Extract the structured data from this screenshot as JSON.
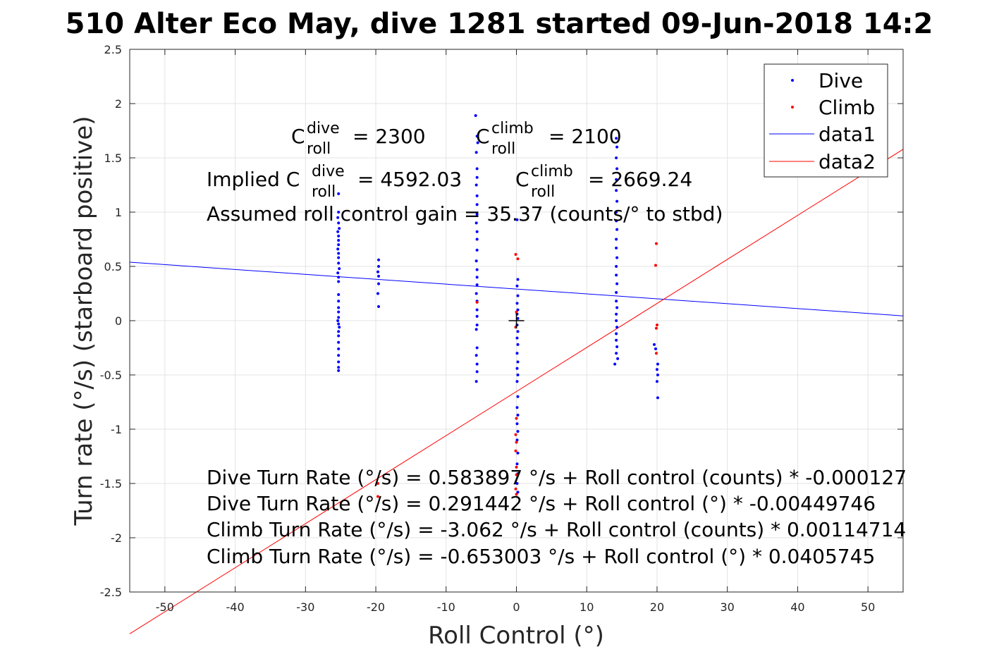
{
  "title": "510 Alter Eco May, dive 1281 started 09-Jun-2018 14:2",
  "chart_data": {
    "type": "scatter",
    "xlabel": "Roll Control (°)",
    "ylabel": "Turn rate (°/s) (starboard positive)",
    "xlim": [
      -55,
      55
    ],
    "ylim": [
      -2.5,
      2.5
    ],
    "x_ticks": [
      "-50",
      "-40",
      "-30",
      "-20",
      "-10",
      "0",
      "10",
      "20",
      "30",
      "40",
      "50"
    ],
    "y_ticks": [
      "2.5",
      "2",
      "1.5",
      "1",
      "0.5",
      "0",
      "-0.5",
      "-1",
      "-1.5",
      "-2",
      "-2.5"
    ],
    "grid": true,
    "legend_position": "top-right",
    "legend": [
      "Dive",
      "Climb",
      "data1",
      "data2"
    ],
    "colors": {
      "dive": "#0000ff",
      "climb": "#ff0000",
      "data1": "#0000ff",
      "data2": "#ff0000",
      "grid": "#e3e3e3"
    },
    "series": [
      {
        "name": "Dive",
        "kind": "points",
        "points": [
          [
            -25.3,
            1.17
          ],
          [
            -25.3,
            1.0
          ],
          [
            -25.4,
            0.95
          ],
          [
            -25.3,
            0.9
          ],
          [
            -25.2,
            0.85
          ],
          [
            -25.4,
            0.82
          ],
          [
            -25.3,
            0.78
          ],
          [
            -25.3,
            0.74
          ],
          [
            -25.3,
            0.7
          ],
          [
            -25.4,
            0.66
          ],
          [
            -25.3,
            0.62
          ],
          [
            -25.3,
            0.58
          ],
          [
            -25.3,
            0.53
          ],
          [
            -25.2,
            0.48
          ],
          [
            -25.4,
            0.44
          ],
          [
            -25.3,
            0.4
          ],
          [
            -25.3,
            0.36
          ],
          [
            -25.3,
            0.24
          ],
          [
            -25.3,
            0.18
          ],
          [
            -25.3,
            0.12
          ],
          [
            -25.3,
            0.08
          ],
          [
            -25.3,
            0.03
          ],
          [
            -25.4,
            0.0
          ],
          [
            -25.3,
            -0.03
          ],
          [
            -25.2,
            -0.06
          ],
          [
            -25.3,
            -0.1
          ],
          [
            -25.3,
            -0.14
          ],
          [
            -25.3,
            -0.2
          ],
          [
            -25.3,
            -0.26
          ],
          [
            -25.3,
            -0.32
          ],
          [
            -25.3,
            -0.38
          ],
          [
            -25.3,
            -0.43
          ],
          [
            -25.3,
            -0.46
          ],
          [
            -19.6,
            0.56
          ],
          [
            -19.6,
            0.5
          ],
          [
            -19.7,
            0.45
          ],
          [
            -19.6,
            0.41
          ],
          [
            -19.6,
            0.34
          ],
          [
            -19.7,
            0.25
          ],
          [
            -19.6,
            0.13
          ],
          [
            -5.8,
            1.89
          ],
          [
            -5.6,
            1.7
          ],
          [
            -5.5,
            1.64
          ],
          [
            -5.7,
            1.55
          ],
          [
            -5.6,
            1.4
          ],
          [
            -5.6,
            1.32
          ],
          [
            -5.7,
            1.25
          ],
          [
            -5.6,
            1.15
          ],
          [
            -5.6,
            1.07
          ],
          [
            -5.6,
            0.98
          ],
          [
            -5.7,
            0.9
          ],
          [
            -5.6,
            0.82
          ],
          [
            -5.6,
            0.75
          ],
          [
            -5.6,
            0.65
          ],
          [
            -5.7,
            0.55
          ],
          [
            -5.6,
            0.47
          ],
          [
            -5.6,
            0.4
          ],
          [
            -5.6,
            0.33
          ],
          [
            -5.7,
            0.25
          ],
          [
            -5.6,
            0.18
          ],
          [
            -5.6,
            0.1
          ],
          [
            -5.6,
            0.04
          ],
          [
            -5.6,
            -0.04
          ],
          [
            -5.7,
            -0.08
          ],
          [
            -5.6,
            -0.25
          ],
          [
            -5.7,
            -0.32
          ],
          [
            -5.6,
            -0.4
          ],
          [
            -5.6,
            -0.47
          ],
          [
            -5.7,
            -0.56
          ],
          [
            0.1,
            0.93
          ],
          [
            0.2,
            0.38
          ],
          [
            0.1,
            0.32
          ],
          [
            0.2,
            0.23
          ],
          [
            0.1,
            0.16
          ],
          [
            0.2,
            0.1
          ],
          [
            0.1,
            0.06
          ],
          [
            0.2,
            0.02
          ],
          [
            0.1,
            -0.04
          ],
          [
            0.2,
            -0.1
          ],
          [
            0.1,
            -0.16
          ],
          [
            0.2,
            -0.22
          ],
          [
            0.1,
            -0.3
          ],
          [
            0.2,
            -0.38
          ],
          [
            0.1,
            -0.44
          ],
          [
            0.2,
            -0.5
          ],
          [
            0.1,
            -0.56
          ],
          [
            0.2,
            -0.7
          ],
          [
            0.1,
            -0.8
          ],
          [
            0.2,
            -0.87
          ],
          [
            0.1,
            -0.95
          ],
          [
            0.2,
            -1.02
          ],
          [
            0.1,
            -1.1
          ],
          [
            0.2,
            -1.22
          ],
          [
            0.1,
            -1.32
          ],
          [
            0.2,
            -1.41
          ],
          [
            0.1,
            -1.5
          ],
          [
            0.2,
            -1.58
          ],
          [
            14.2,
            1.68
          ],
          [
            14.3,
            1.6
          ],
          [
            14.2,
            1.5
          ],
          [
            14.3,
            1.4
          ],
          [
            14.2,
            1.3
          ],
          [
            14.2,
            1.2
          ],
          [
            14.3,
            1.1
          ],
          [
            14.2,
            1.0
          ],
          [
            14.2,
            0.92
          ],
          [
            14.3,
            0.84
          ],
          [
            14.2,
            0.75
          ],
          [
            14.2,
            0.67
          ],
          [
            14.3,
            0.58
          ],
          [
            14.2,
            0.5
          ],
          [
            14.2,
            0.42
          ],
          [
            14.3,
            0.34
          ],
          [
            14.2,
            0.26
          ],
          [
            14.2,
            0.18
          ],
          [
            14.3,
            0.12
          ],
          [
            14.2,
            0.06
          ],
          [
            14.2,
            0.0
          ],
          [
            14.3,
            -0.06
          ],
          [
            14.2,
            -0.12
          ],
          [
            14.2,
            -0.18
          ],
          [
            14.3,
            -0.24
          ],
          [
            14.2,
            -0.3
          ],
          [
            14.4,
            -0.35
          ],
          [
            14.0,
            -0.4
          ],
          [
            19.6,
            -0.22
          ],
          [
            19.8,
            -0.26
          ],
          [
            20.1,
            -0.4
          ],
          [
            20.0,
            -0.45
          ],
          [
            20.1,
            -0.5
          ],
          [
            20.0,
            -0.56
          ],
          [
            20.1,
            -0.71
          ]
        ]
      },
      {
        "name": "Climb",
        "kind": "points",
        "points": [
          [
            -19.7,
            -1.5
          ],
          [
            -19.7,
            -1.62
          ],
          [
            -5.6,
            0.17
          ],
          [
            -0.1,
            0.61
          ],
          [
            0.2,
            0.57
          ],
          [
            0.0,
            0.08
          ],
          [
            -0.1,
            -0.06
          ],
          [
            0.0,
            -0.9
          ],
          [
            -0.1,
            -1.05
          ],
          [
            0.0,
            -1.12
          ],
          [
            -0.1,
            -1.2
          ],
          [
            0.0,
            -1.35
          ],
          [
            0.0,
            -1.42
          ],
          [
            -0.1,
            -1.55
          ],
          [
            0.0,
            -1.6
          ],
          [
            19.9,
            0.71
          ],
          [
            19.8,
            0.51
          ],
          [
            20.0,
            -0.04
          ],
          [
            19.9,
            -0.07
          ],
          [
            19.9,
            -0.3
          ]
        ]
      },
      {
        "name": "data1",
        "kind": "line",
        "x": [
          -55,
          55
        ],
        "y": [
          0.539,
          0.044
        ]
      },
      {
        "name": "data2",
        "kind": "line",
        "x": [
          -55,
          55
        ],
        "y": [
          -2.885,
          1.579
        ]
      }
    ],
    "center_marker": [
      0,
      0
    ]
  },
  "annotations": {
    "c_dive_base": "C",
    "c_dive_sup": "dive",
    "c_dive_sub": "roll",
    "c_dive_value": "= 2300",
    "c_climb_base": "C",
    "c_climb_sup": "climb",
    "c_climb_sub": "roll",
    "c_climb_value": "= 2100",
    "implied_prefix": "Implied C",
    "implied_dive_sup": "dive",
    "implied_dive_sub": "roll",
    "implied_dive_value": "= 4592.03",
    "implied_climb_base": "C",
    "implied_climb_sup": "climb",
    "implied_climb_sub": "roll",
    "implied_climb_value": "= 2669.24",
    "gain_line": "Assumed roll control gain = 35.37 (counts/° to stbd)",
    "fit_lines": [
      "Dive Turn Rate (°/s) = 0.583897 °/s + Roll control (counts) * -0.000127",
      "Dive Turn Rate (°/s) = 0.291442 °/s + Roll control (°) * -0.00449746",
      "Climb Turn Rate (°/s) = -3.062 °/s + Roll control (counts) * 0.00114714",
      "Climb Turn Rate (°/s) = -0.653003 °/s + Roll control (°) * 0.0405745"
    ]
  }
}
